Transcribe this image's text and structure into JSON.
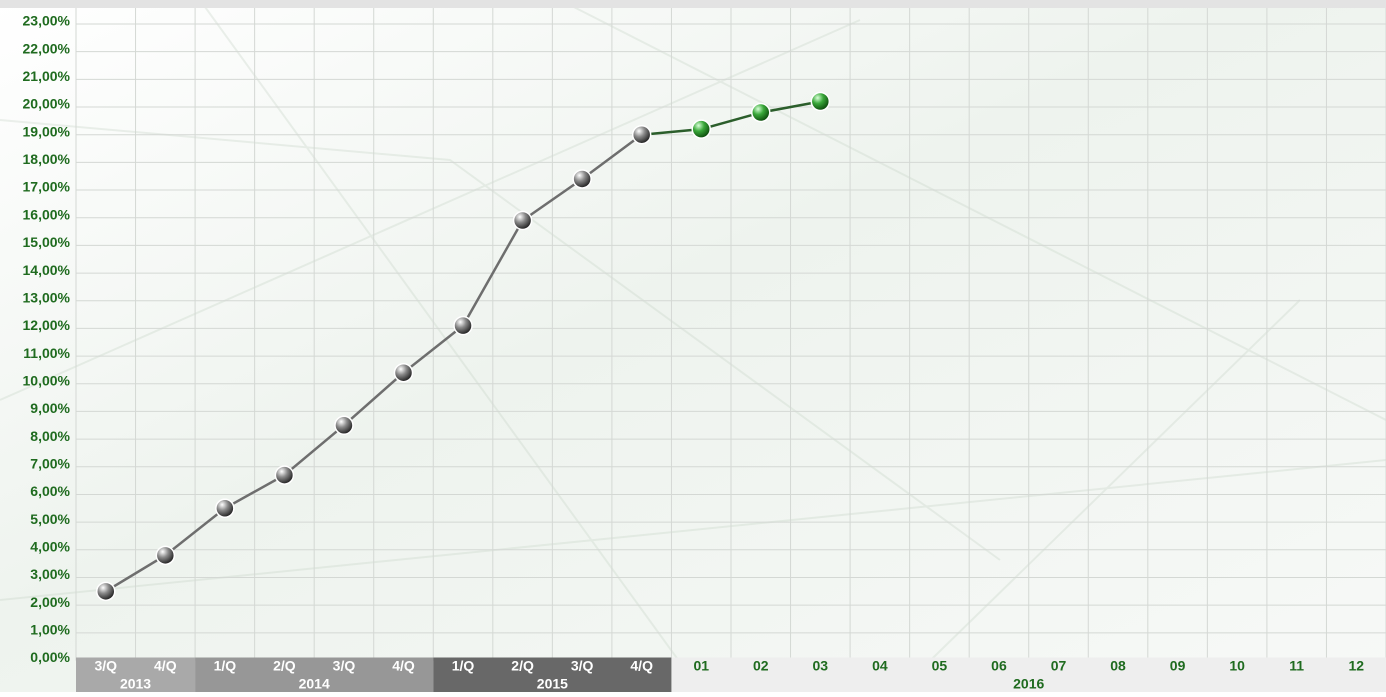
{
  "chart_data": {
    "type": "line",
    "groups": [
      {
        "label": "2013",
        "categories": [
          "3/Q",
          "4/Q"
        ],
        "band_color": "#a9a9a9",
        "text_color": "#ffffff"
      },
      {
        "label": "2014",
        "categories": [
          "1/Q",
          "2/Q",
          "3/Q",
          "4/Q"
        ],
        "band_color": "#979797",
        "text_color": "#ffffff"
      },
      {
        "label": "2015",
        "categories": [
          "1/Q",
          "2/Q",
          "3/Q",
          "4/Q"
        ],
        "band_color": "#686868",
        "text_color": "#ffffff"
      },
      {
        "label": "2016",
        "categories": [
          "01",
          "02",
          "03",
          "04",
          "05",
          "06",
          "07",
          "08",
          "09",
          "10",
          "11",
          "12"
        ],
        "band_color": "#eeeeee",
        "text_color": "#1f6b1f"
      }
    ],
    "series": [
      {
        "color": "#6e6e6e",
        "marker": "gray",
        "values": [
          2.5,
          3.8,
          5.5,
          6.7,
          8.5,
          10.4,
          12.1,
          15.9,
          17.4,
          19.0,
          null,
          null,
          null,
          null,
          null,
          null,
          null,
          null,
          null,
          null,
          null,
          null
        ]
      },
      {
        "color": "#2b5e2b",
        "marker": "green",
        "values": [
          null,
          null,
          null,
          null,
          null,
          null,
          null,
          null,
          null,
          null,
          19.2,
          19.8,
          20.2,
          null,
          null,
          null,
          null,
          null,
          null,
          null,
          null,
          null
        ]
      }
    ],
    "ylim": [
      0,
      23
    ],
    "yticks": [
      {
        "value": 0,
        "label": "0,00%"
      },
      {
        "value": 1,
        "label": "1,00%"
      },
      {
        "value": 2,
        "label": "2,00%"
      },
      {
        "value": 3,
        "label": "3,00%"
      },
      {
        "value": 4,
        "label": "4,00%"
      },
      {
        "value": 5,
        "label": "5,00%"
      },
      {
        "value": 6,
        "label": "6,00%"
      },
      {
        "value": 7,
        "label": "7,00%"
      },
      {
        "value": 8,
        "label": "8,00%"
      },
      {
        "value": 9,
        "label": "9,00%"
      },
      {
        "value": 10,
        "label": "10,00%"
      },
      {
        "value": 11,
        "label": "11,00%"
      },
      {
        "value": 12,
        "label": "12,00%"
      },
      {
        "value": 13,
        "label": "13,00%"
      },
      {
        "value": 14,
        "label": "14,00%"
      },
      {
        "value": 15,
        "label": "15,00%"
      },
      {
        "value": 16,
        "label": "16,00%"
      },
      {
        "value": 17,
        "label": "17,00%"
      },
      {
        "value": 18,
        "label": "18,00%"
      },
      {
        "value": 19,
        "label": "19,00%"
      },
      {
        "value": 20,
        "label": "20,00%"
      },
      {
        "value": 21,
        "label": "21,00%"
      },
      {
        "value": 22,
        "label": "22,00%"
      },
      {
        "value": 23,
        "label": "23,00%"
      }
    ],
    "grid": true,
    "tick_color": "#1f6b1f"
  }
}
